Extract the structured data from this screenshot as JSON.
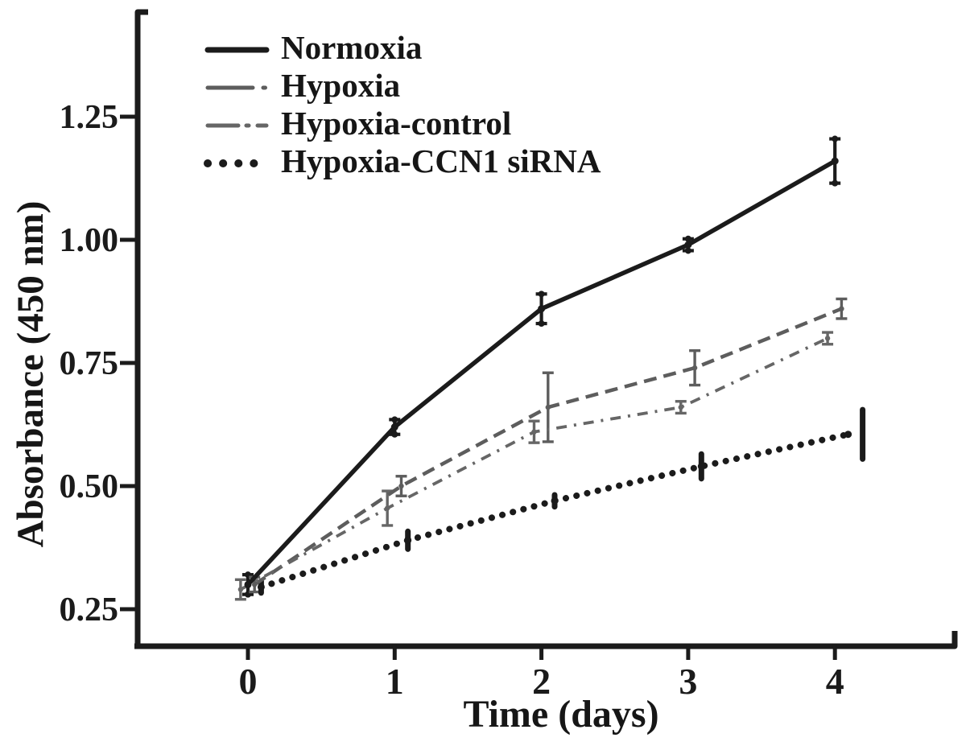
{
  "chart_data": {
    "type": "line",
    "title": "",
    "xlabel": "Time (days)",
    "ylabel": "Absorbance (450 nm)",
    "x": [
      0,
      1,
      2,
      3,
      4
    ],
    "x_tick_labels": [
      "0",
      "1",
      "2",
      "3",
      "4"
    ],
    "y_tick_values": [
      1.25,
      1.0,
      0.75,
      0.5,
      0.25
    ],
    "y_tick_labels": [
      "1.25",
      "1.00",
      "0.75",
      "0.50",
      "0.25"
    ],
    "xlim": [
      -0.75,
      4.82
    ],
    "ylim": [
      0.175,
      1.3
    ],
    "grid": false,
    "legend_position": "top-left",
    "colors": {
      "black": "#1b1b1b",
      "gray": "#5d5d5d"
    },
    "series": [
      {
        "name": "Normoxia",
        "line_style": "solid",
        "color": "#1b1b1b",
        "x_offset": 0.0,
        "values": [
          0.3,
          0.62,
          0.86,
          0.99,
          1.16
        ],
        "errors": [
          0.02,
          0.015,
          0.03,
          0.012,
          0.045
        ]
      },
      {
        "name": "Hypoxia",
        "line_style": "dashed",
        "color": "#5d5d5d",
        "x_offset": 0.045,
        "values": [
          0.3,
          0.5,
          0.66,
          0.74,
          0.86
        ],
        "errors": [
          0.015,
          0.02,
          0.07,
          0.035,
          0.02
        ]
      },
      {
        "name": "Hypoxia-control",
        "line_style": "dash-dot",
        "color": "#666666",
        "x_offset": -0.05,
        "values": [
          0.29,
          0.455,
          0.61,
          0.66,
          0.8
        ],
        "errors": [
          0.02,
          0.035,
          0.022,
          0.012,
          0.012
        ]
      },
      {
        "name": "Hypoxia-CCN1 siRNA",
        "line_style": "dotted",
        "color": "#1b1b1b",
        "x_offset": 0.09,
        "values": [
          0.295,
          0.39,
          0.47,
          0.54,
          0.605
        ],
        "errors": [
          0.012,
          0.018,
          0.012,
          0.025,
          0.05
        ]
      }
    ]
  }
}
